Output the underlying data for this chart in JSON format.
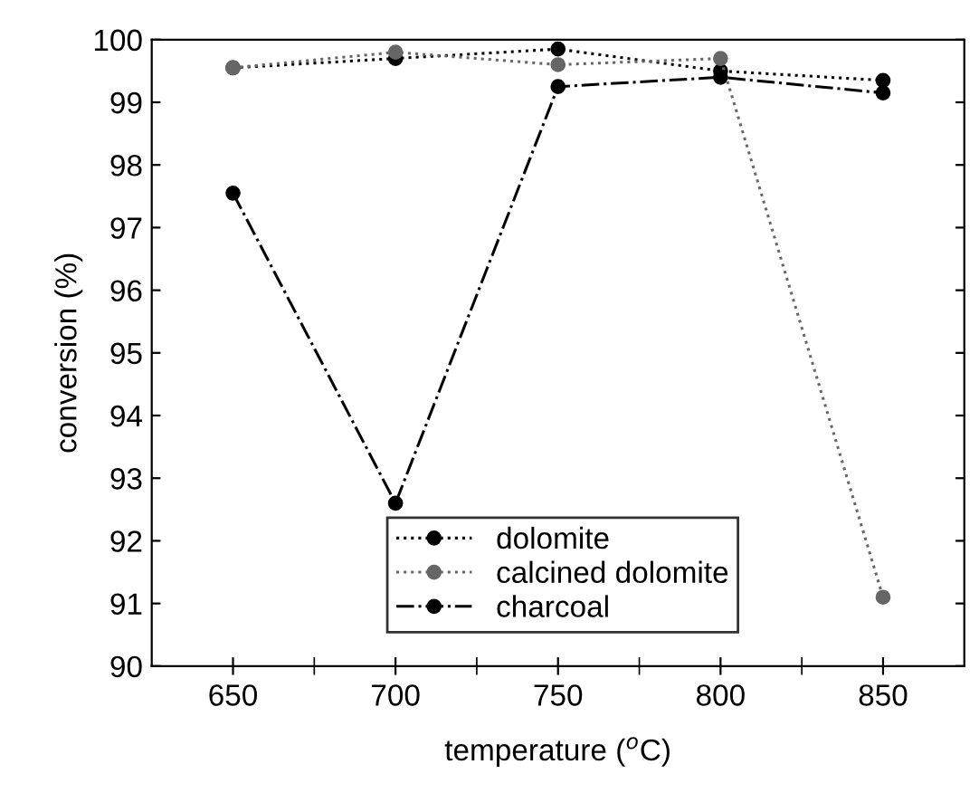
{
  "chart_data": {
    "type": "line",
    "xlabel": "temperature ($^{o}$C)",
    "ylabel": "conversion (%)",
    "x": [
      650,
      700,
      750,
      800,
      850
    ],
    "series": [
      {
        "name": "dolomite",
        "color": "#000000",
        "values": [
          99.55,
          99.7,
          99.85,
          99.5,
          99.35
        ],
        "line_style": "dotted"
      },
      {
        "name": "calcined dolomite",
        "color": "#666666",
        "values": [
          99.55,
          99.8,
          99.6,
          99.7,
          91.1
        ],
        "line_style": "dotted"
      },
      {
        "name": "charcoal",
        "color": "#000000",
        "values": [
          97.55,
          92.6,
          99.25,
          99.4,
          99.15
        ],
        "line_style": "dashdot"
      }
    ],
    "marker": "circle",
    "xlim": [
      625,
      875
    ],
    "ylim": [
      90,
      100
    ],
    "xticks": [
      650,
      700,
      750,
      800,
      850
    ],
    "yticks": [
      90,
      91,
      92,
      93,
      94,
      95,
      96,
      97,
      98,
      99,
      100
    ],
    "grid": false,
    "legend": "bottom right"
  }
}
